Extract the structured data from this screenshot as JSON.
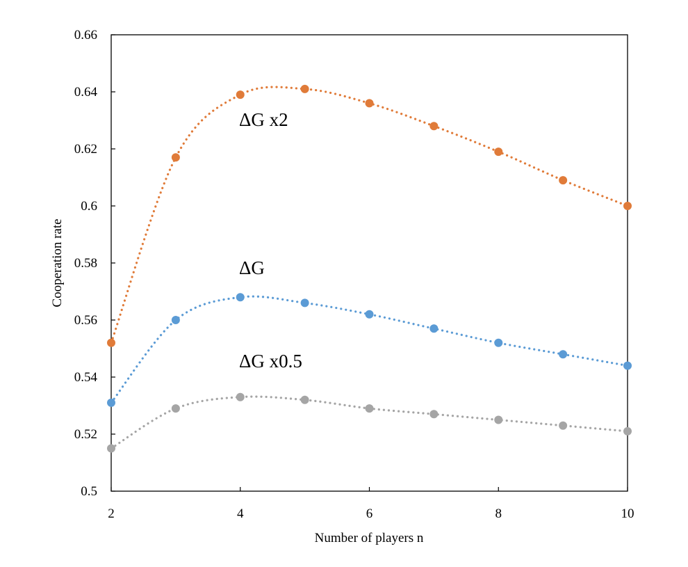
{
  "chart_data": {
    "type": "line",
    "title": "",
    "xlabel": "Number of players n",
    "ylabel": "Cooperation rate",
    "xlim": [
      2,
      10
    ],
    "ylim": [
      0.5,
      0.66
    ],
    "x_ticks": [
      2,
      4,
      6,
      8,
      10
    ],
    "x_tick_labels": [
      "2",
      "4",
      "6",
      "8",
      "10"
    ],
    "y_ticks": [
      0.5,
      0.52,
      0.54,
      0.56,
      0.58,
      0.6,
      0.62,
      0.64,
      0.66
    ],
    "y_tick_labels": [
      "0.5",
      "0.52",
      "0.54",
      "0.56",
      "0.58",
      "0.6",
      "0.62",
      "0.64",
      "0.66"
    ],
    "grid": false,
    "legend": "none",
    "line_style": "dotted smoothed with markers",
    "x": [
      2,
      3,
      4,
      5,
      6,
      7,
      8,
      9,
      10
    ],
    "series": [
      {
        "name": "ΔG x2",
        "color": "#E07B39",
        "values": [
          0.552,
          0.617,
          0.639,
          0.641,
          0.636,
          0.628,
          0.619,
          0.609,
          0.6
        ]
      },
      {
        "name": "ΔG",
        "color": "#5B9BD5",
        "values": [
          0.531,
          0.56,
          0.568,
          0.566,
          0.562,
          0.557,
          0.552,
          0.548,
          0.544
        ]
      },
      {
        "name": "ΔG x0.5",
        "color": "#A5A5A5",
        "values": [
          0.515,
          0.529,
          0.533,
          0.532,
          0.529,
          0.527,
          0.525,
          0.523,
          0.521
        ]
      }
    ]
  }
}
